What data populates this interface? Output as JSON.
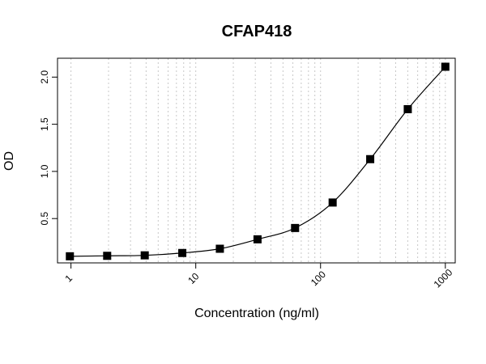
{
  "chart_data": {
    "type": "scatter",
    "title": "CFAP418",
    "xlabel": "Concentration (ng/ml)",
    "ylabel": "OD",
    "x_scale": "log10",
    "xlim": [
      0.78,
      1200
    ],
    "ylim": [
      0.03,
      2.2
    ],
    "x_major_ticks": [
      {
        "value": 1,
        "label": "1"
      },
      {
        "value": 10,
        "label": "10"
      },
      {
        "value": 100,
        "label": "100"
      },
      {
        "value": 1000,
        "label": "1000"
      }
    ],
    "y_ticks": [
      {
        "value": 0.5,
        "label": "0.5"
      },
      {
        "value": 1.0,
        "label": "1.0"
      },
      {
        "value": 1.5,
        "label": "1.5"
      },
      {
        "value": 2.0,
        "label": "2.0"
      }
    ],
    "grid": "vertical dotted at each log minor/major decade step",
    "marker": "filled square",
    "fit": "4-parameter logistic curve",
    "colors": {
      "points": "#000000",
      "curve": "#000000",
      "grid": "#c8c8c8",
      "frame": "#000000"
    },
    "series": [
      {
        "x": [
          0.98,
          1.95,
          3.9,
          7.8,
          15.6,
          31.25,
          62.5,
          125,
          250,
          500,
          1000
        ],
        "y": [
          0.1,
          0.105,
          0.11,
          0.135,
          0.18,
          0.28,
          0.4,
          0.67,
          1.13,
          1.66,
          2.11
        ]
      }
    ]
  }
}
